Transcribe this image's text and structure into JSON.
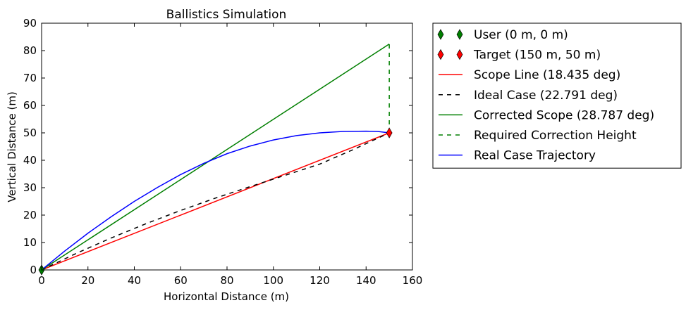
{
  "chart_data": {
    "type": "line",
    "title": "Ballistics Simulation",
    "xlabel": "Horizontal Distance (m)",
    "ylabel": "Vertical Distance (m)",
    "xlim": [
      0,
      160
    ],
    "ylim": [
      0,
      90
    ],
    "xticks": [
      0,
      20,
      40,
      60,
      80,
      100,
      120,
      140,
      160
    ],
    "yticks": [
      0,
      10,
      20,
      30,
      40,
      50,
      60,
      70,
      80,
      90
    ],
    "grid": false,
    "legend_position": "outside-right-top",
    "markers": [
      {
        "name": "User (0 m, 0 m)",
        "x": 0,
        "y": 0,
        "color": "#007f00",
        "shape": "thin-diamond"
      },
      {
        "name": "Target (150 m, 50 m)",
        "x": 150,
        "y": 50,
        "color": "#ff0000",
        "shape": "thin-diamond"
      }
    ],
    "series": [
      {
        "name": "Scope Line (18.435 deg)",
        "color": "#ff0000",
        "style": "solid",
        "x": [
          0,
          150
        ],
        "y": [
          0,
          50
        ]
      },
      {
        "name": "Ideal Case (22.791 deg)",
        "color": "#000000",
        "style": "dashed",
        "x": [
          0,
          15,
          30,
          45,
          60,
          75,
          90,
          105,
          120,
          135,
          150
        ],
        "y": [
          0,
          6.05,
          11.65,
          16.85,
          21.7,
          26.2,
          30.4,
          34.5,
          38.6,
          44.1,
          50
        ]
      },
      {
        "name": "Corrected Scope (28.787 deg)",
        "color": "#007f00",
        "style": "solid",
        "x": [
          0,
          150
        ],
        "y": [
          0,
          82.4
        ]
      },
      {
        "name": "Required Correction Height",
        "color": "#007f00",
        "style": "dashed",
        "x": [
          150,
          150
        ],
        "y": [
          50,
          82.4
        ]
      },
      {
        "name": "Real Case Trajectory",
        "color": "#0000ff",
        "style": "solid",
        "x": [
          0,
          10,
          20,
          30,
          40,
          50,
          60,
          70,
          80,
          90,
          100,
          110,
          120,
          130,
          140,
          145,
          150
        ],
        "y": [
          0,
          6.9,
          13.4,
          19.4,
          25.0,
          30.1,
          34.8,
          38.9,
          42.4,
          45.2,
          47.4,
          49.0,
          50.0,
          50.5,
          50.6,
          50.5,
          50.0
        ]
      }
    ]
  }
}
